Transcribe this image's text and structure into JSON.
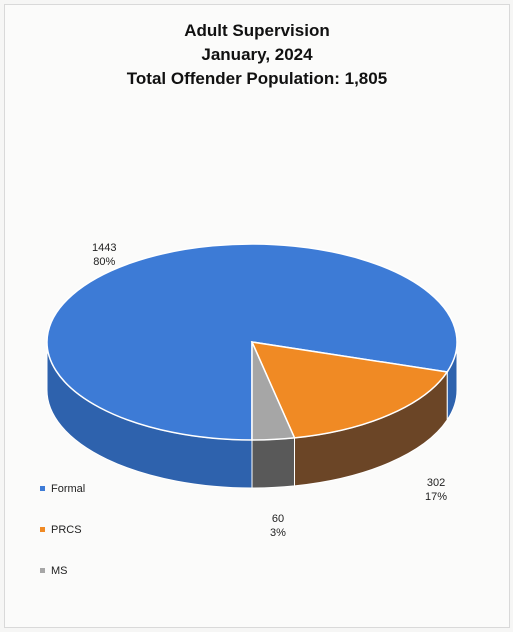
{
  "chart_data": {
    "type": "pie",
    "title_lines": [
      "Adult Supervision",
      "January, 2024",
      "Total Offender Population: 1,805"
    ],
    "slices": [
      {
        "label": "Formal",
        "value": 1443,
        "percent": "80%",
        "color": "#3d7bd6",
        "side_color": "#2e62ad"
      },
      {
        "label": "PRCS",
        "value": 302,
        "percent": "17%",
        "color": "#f08a24",
        "side_color": "#6b4526"
      },
      {
        "label": "MS",
        "value": 60,
        "percent": "3%",
        "color": "#a6a6a6",
        "side_color": "#595959"
      }
    ],
    "legend_position": "bottom-left"
  }
}
